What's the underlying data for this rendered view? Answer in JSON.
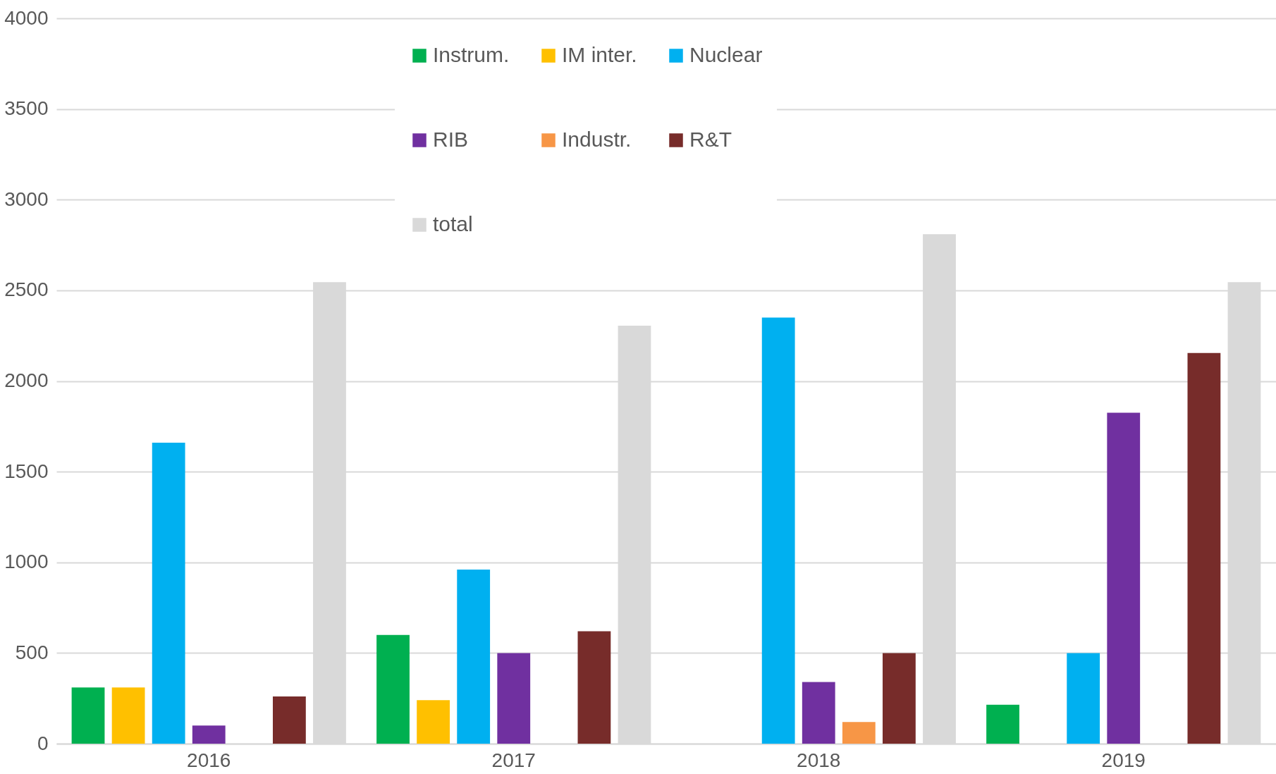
{
  "chart_data": {
    "type": "bar",
    "categories": [
      "2016",
      "2017",
      "2018",
      "2019"
    ],
    "series": [
      {
        "name": "Instrum.",
        "color": "#00b050",
        "values": [
          310,
          600,
          null,
          215
        ]
      },
      {
        "name": "IM inter.",
        "color": "#ffc000",
        "values": [
          310,
          240,
          null,
          null
        ]
      },
      {
        "name": "Nuclear",
        "color": "#00b0f0",
        "values": [
          1660,
          960,
          2350,
          500
        ]
      },
      {
        "name": "RIB",
        "color": "#7030a0",
        "values": [
          100,
          500,
          340,
          1825
        ]
      },
      {
        "name": "Industr.",
        "color": "#f79646",
        "values": [
          null,
          null,
          120,
          null
        ]
      },
      {
        "name": "R&T",
        "color": "#772c2a",
        "values": [
          260,
          620,
          500,
          2155
        ]
      },
      {
        "name": "total",
        "color": "#d9d9d9",
        "values": [
          2545,
          2305,
          2810,
          2545
        ]
      }
    ],
    "ylim": [
      0,
      4000
    ],
    "yticks": [
      0,
      500,
      1000,
      1500,
      2000,
      2500,
      3000,
      3500,
      4000
    ],
    "grid": "y",
    "legend": "top"
  }
}
